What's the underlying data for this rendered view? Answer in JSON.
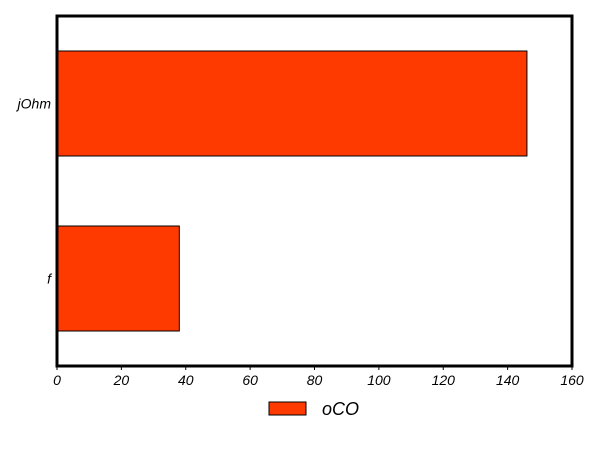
{
  "chart_data": {
    "type": "bar",
    "orientation": "horizontal",
    "categories": [
      "f",
      "jOhm"
    ],
    "series": [
      {
        "name": "oCO",
        "values": [
          38,
          146
        ],
        "color": "#ff3a00"
      }
    ],
    "x_ticks": [
      "0",
      "20",
      "40",
      "60",
      "80",
      "100",
      "120",
      "140",
      "160"
    ],
    "xlim": [
      0,
      160
    ],
    "title": "",
    "xlabel": "",
    "ylabel": "",
    "grid": false,
    "legend": {
      "position": "bottom-center"
    }
  }
}
